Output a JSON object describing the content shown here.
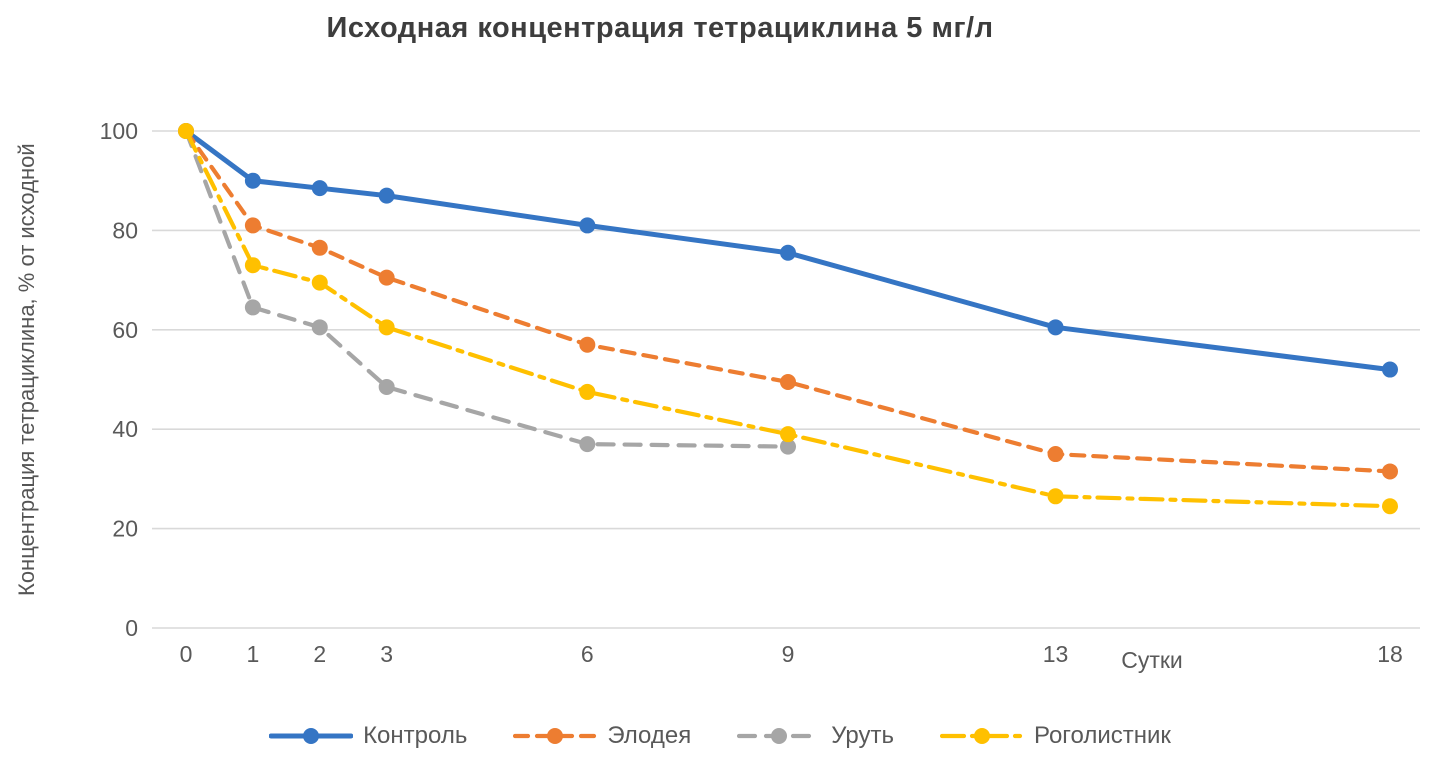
{
  "chart_data": {
    "type": "line",
    "title": "Исходная концентрация тетрациклина  5 мг/л",
    "xlabel": "Сутки",
    "ylabel": "Концентрация тетрациклина, % от исходной",
    "x": [
      0,
      1,
      2,
      3,
      6,
      9,
      13,
      18
    ],
    "ylim": [
      0,
      100
    ],
    "yticks": [
      0,
      20,
      40,
      60,
      80,
      100
    ],
    "grid": true,
    "legend_position": "bottom",
    "colors": {
      "grid": "#D9D9D9",
      "axis_text": "#595959",
      "title_text": "#3D3D3D"
    },
    "series": [
      {
        "name": "Контроль",
        "color": "#3575C4",
        "line_style": "solid",
        "values": [
          100,
          90,
          88.5,
          87,
          81,
          75.5,
          60.5,
          52
        ]
      },
      {
        "name": "Элодея",
        "color": "#ED7D31",
        "line_style": "dashed",
        "values": [
          100,
          81,
          76.5,
          70.5,
          57,
          49.5,
          35,
          31.5
        ]
      },
      {
        "name": "Уруть",
        "color": "#A6A6A6",
        "line_style": "long-dash",
        "values": [
          100,
          64.5,
          60.5,
          48.5,
          37,
          36.5,
          null,
          null
        ]
      },
      {
        "name": "Роголистник",
        "color": "#FFC000",
        "line_style": "dash-dot",
        "values": [
          100,
          73,
          69.5,
          60.5,
          47.5,
          39,
          26.5,
          24.5
        ]
      }
    ]
  }
}
